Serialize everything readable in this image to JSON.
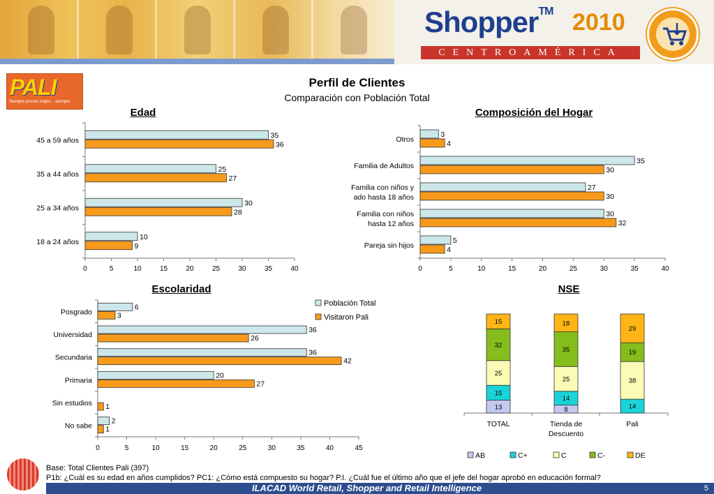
{
  "header": {
    "brand": "Shopper",
    "trademark": "TM",
    "year": "2010",
    "region": "CENTROAMÉRICA"
  },
  "retailer": {
    "logo_text": "PALI",
    "slogan": "Siempre precios bajos... siempre"
  },
  "page": {
    "title": "Perfil de Clientes",
    "subtitle": "Comparación con Población Total"
  },
  "colors": {
    "poblacion": "#cce7ea",
    "pali": "#f79a1c",
    "bar_stroke": "#333333"
  },
  "chart_data": [
    {
      "type": "bar",
      "title": "Edad",
      "orientation": "horizontal",
      "categories": [
        "45 a 59 años",
        "35 a 44 años",
        "25 a 34 años",
        "18 a 24 años"
      ],
      "series": [
        {
          "name": "Población Total",
          "values": [
            35,
            25,
            30,
            10
          ]
        },
        {
          "name": "Visitaron Pali",
          "values": [
            36,
            27,
            28,
            9
          ]
        }
      ],
      "xlim": [
        0,
        40
      ],
      "xticks": [
        0,
        5,
        10,
        15,
        20,
        25,
        30,
        35,
        40
      ]
    },
    {
      "type": "bar",
      "title": "Composición del Hogar",
      "orientation": "horizontal",
      "categories": [
        "Otros",
        "Familia de Adultos",
        "Familia con niños y ado hasta 18 años",
        "Familia con niños hasta 12 años",
        "Pareja sin hijos"
      ],
      "category_lines": [
        [
          "Otros"
        ],
        [
          "Familia de Adultos"
        ],
        [
          "Familia con niños y",
          "ado hasta 18 años"
        ],
        [
          "Familia con niños",
          "hasta 12 años"
        ],
        [
          "Pareja sin hijos"
        ]
      ],
      "series": [
        {
          "name": "Población Total",
          "values": [
            3,
            35,
            27,
            30,
            5
          ]
        },
        {
          "name": "Visitaron Pali",
          "values": [
            4,
            30,
            30,
            32,
            4
          ]
        }
      ],
      "xlim": [
        0,
        40
      ],
      "xticks": [
        0,
        5,
        10,
        15,
        20,
        25,
        30,
        35,
        40
      ]
    },
    {
      "type": "bar",
      "title": "Escolaridad",
      "orientation": "horizontal",
      "categories": [
        "Posgrado",
        "Universidad",
        "Secundaria",
        "Primaria",
        "Sin estudios",
        "No sabe"
      ],
      "series": [
        {
          "name": "Población Total",
          "values": [
            6,
            36,
            36,
            20,
            null,
            2
          ]
        },
        {
          "name": "Visitaron Pali",
          "values": [
            3,
            26,
            42,
            27,
            1,
            1
          ]
        }
      ],
      "xlim": [
        0,
        45
      ],
      "xticks": [
        0,
        5,
        10,
        15,
        20,
        25,
        30,
        35,
        40,
        45
      ],
      "legend": {
        "position": "top-right",
        "entries": [
          "Población Total",
          "Visitaron Pali"
        ]
      }
    },
    {
      "type": "bar",
      "stacked": true,
      "title": "NSE",
      "categories": [
        "TOTAL",
        "Tienda de Descuento",
        "Pali"
      ],
      "category_lines": [
        [
          "TOTAL"
        ],
        [
          "Tienda de",
          "Descuento"
        ],
        [
          "Pali"
        ]
      ],
      "series": [
        {
          "name": "AB",
          "color": "#c3c9f0",
          "values": [
            13,
            8,
            null
          ]
        },
        {
          "name": "C+",
          "color": "#19d3d9",
          "values": [
            15,
            14,
            14
          ]
        },
        {
          "name": "C",
          "color": "#fbfbb5",
          "values": [
            25,
            25,
            38
          ]
        },
        {
          "name": "C-",
          "color": "#84bd1c",
          "values": [
            32,
            35,
            19
          ]
        },
        {
          "name": "DE",
          "color": "#ffb515",
          "values": [
            15,
            18,
            29
          ]
        }
      ],
      "legend": {
        "position": "bottom",
        "entries": [
          "AB",
          "C+",
          "C",
          "C-",
          "DE"
        ]
      }
    }
  ],
  "footer": {
    "base": "Base: Total Clientes Pali  (397)",
    "question": "P1b: ¿Cuál es su edad en años cumplidos? PC1: ¿Cómo está compuesto su hogar? P.I. ¿Cuál fue el último año que el jefe del hogar aprobó en educación formal?",
    "bar_text": "ILACAD World Retail, Shopper and Retail Intelligence",
    "page_number": "5"
  }
}
